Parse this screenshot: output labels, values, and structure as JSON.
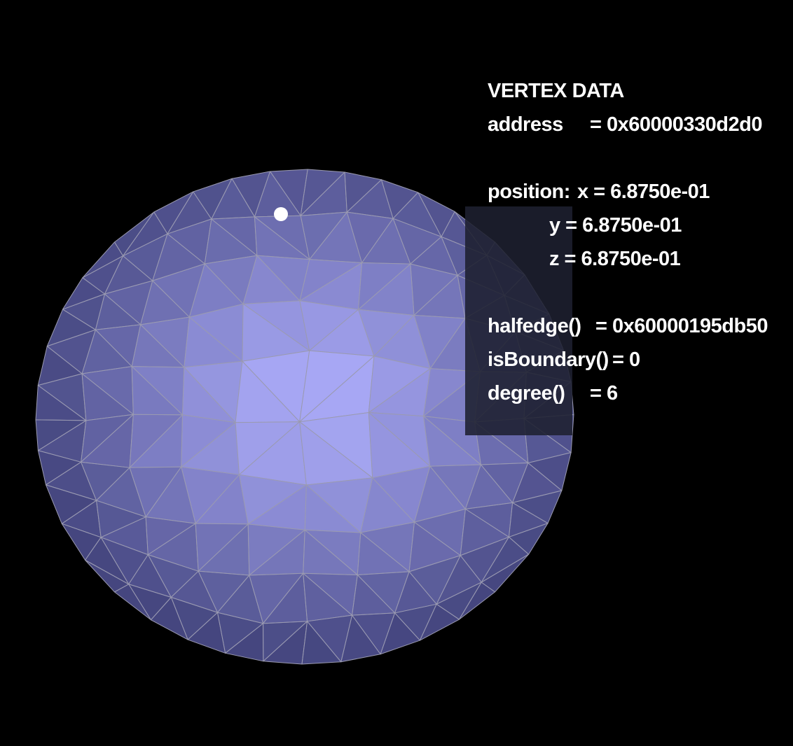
{
  "scene": {
    "background_color": "#000000",
    "mesh_fill_color": "#8a8cf5",
    "mesh_edge_color": "#9a9ab0",
    "selected_vertex_color": "#ffffff"
  },
  "vertex_info": {
    "title": "VERTEX DATA",
    "address_label": "address",
    "address_value": "= 0x60000330d2d0",
    "position_label": "position:",
    "x_text": "x = 6.8750e-01",
    "y_text": "y = 6.8750e-01",
    "z_text": "z = 6.8750e-01",
    "halfedge_label": "halfedge()",
    "halfedge_value": "= 0x60000195db50",
    "is_boundary_label": "isBoundary()",
    "is_boundary_value": "= 0",
    "degree_label": "degree()",
    "degree_value": "= 6"
  }
}
